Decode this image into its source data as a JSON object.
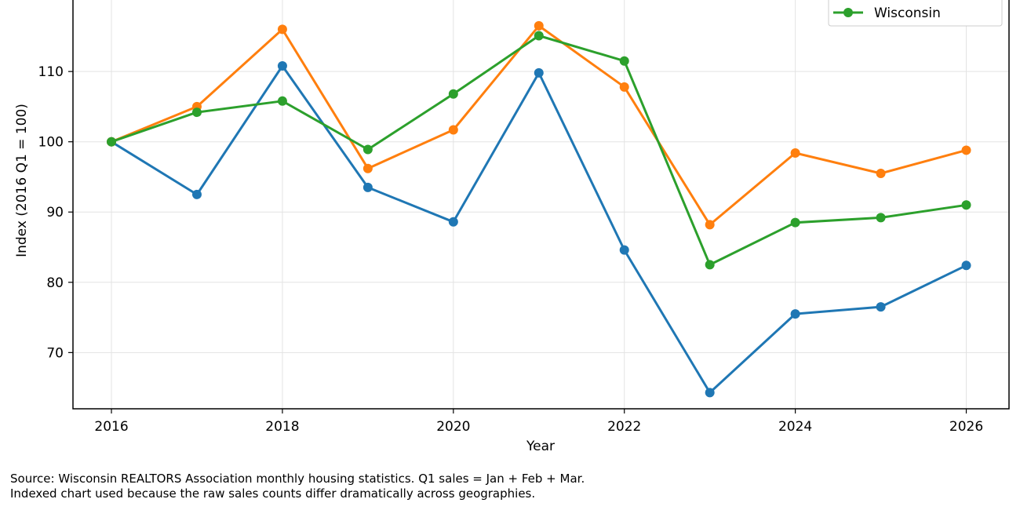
{
  "chart_data": {
    "type": "line",
    "title": "",
    "xlabel": "Year",
    "ylabel": "Index (2016 Q1 = 100)",
    "x": [
      2016,
      2017,
      2018,
      2019,
      2020,
      2021,
      2022,
      2023,
      2024,
      2025,
      2026
    ],
    "xlim": [
      2015.55,
      2026.5
    ],
    "ylim": [
      62.0,
      120.4
    ],
    "x_ticks": [
      2016,
      2018,
      2020,
      2022,
      2024,
      2026
    ],
    "y_ticks": [
      70,
      80,
      90,
      100,
      110
    ],
    "grid": true,
    "legend_position": "top-right",
    "series": [
      {
        "name": "",
        "color": "#1f77b4",
        "values": [
          100.0,
          92.5,
          110.8,
          93.5,
          88.6,
          109.8,
          84.6,
          64.3,
          75.5,
          76.5,
          82.4
        ]
      },
      {
        "name": "",
        "color": "#ff7f0e",
        "values": [
          100.0,
          105.0,
          116.0,
          96.2,
          101.7,
          116.5,
          107.8,
          88.2,
          98.4,
          95.5,
          98.8
        ]
      },
      {
        "name": "Wisconsin",
        "color": "#2ca02c",
        "values": [
          100.0,
          104.2,
          105.8,
          98.9,
          106.8,
          115.1,
          111.5,
          82.5,
          88.5,
          89.2,
          91.0
        ]
      }
    ]
  },
  "caption": {
    "line1": "Source: Wisconsin REALTORS Association monthly housing statistics. Q1 sales = Jan + Feb + Mar.",
    "line2": "Indexed chart used because the raw sales counts differ dramatically across geographies."
  }
}
